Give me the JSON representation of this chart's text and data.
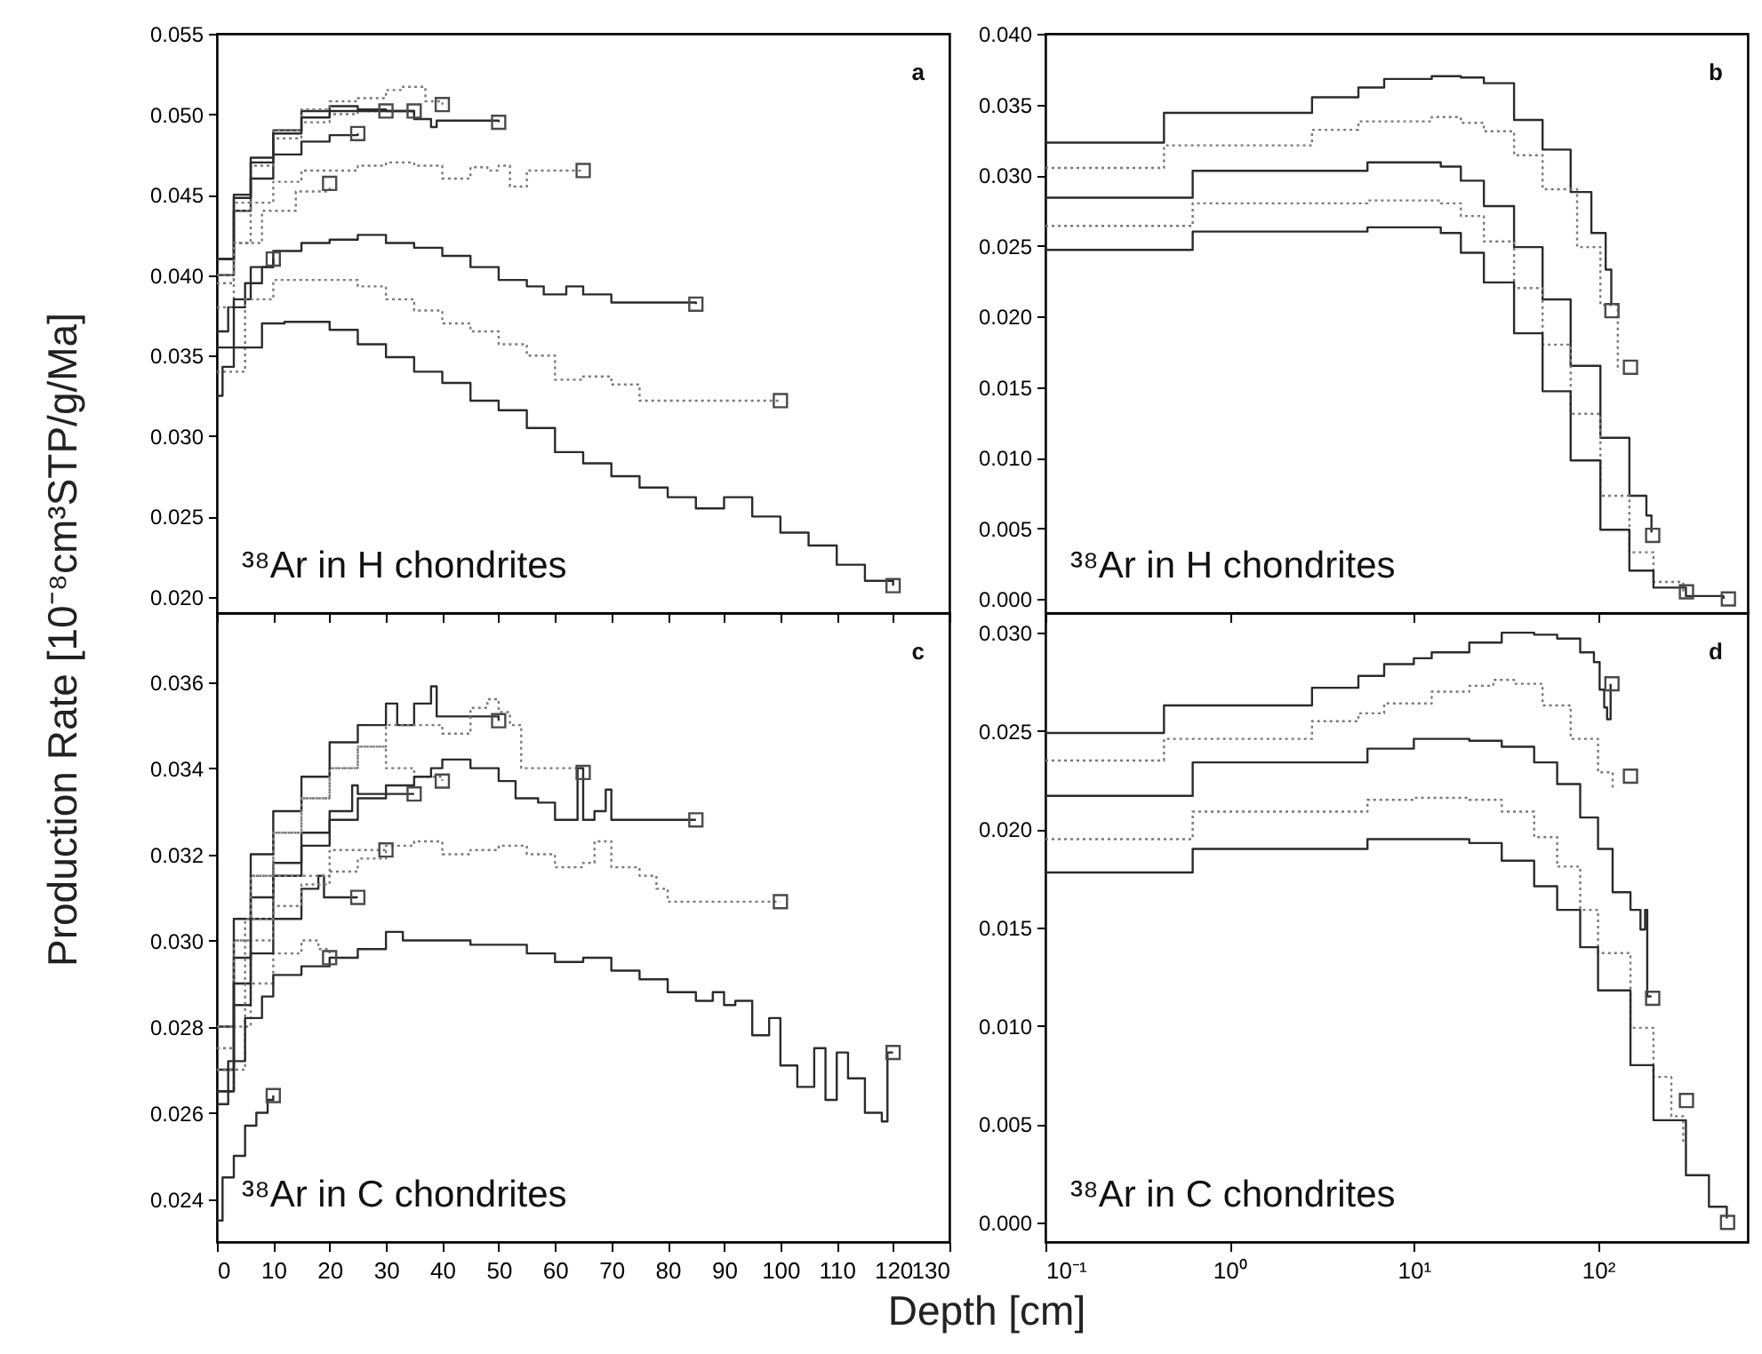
{
  "chart_data": [
    {
      "type": "step",
      "ylabel": "Production Rate [10⁻⁸cm³STP/g/Ma]",
      "annotations": [
        "a",
        "³⁸Ar in H chondrites"
      ],
      "xlim": [
        0,
        130
      ],
      "xticks": [
        0,
        10,
        20,
        30,
        40,
        50,
        60,
        70,
        80,
        90,
        100,
        110,
        120,
        130
      ],
      "ylim": [
        0.019,
        0.055
      ],
      "yticks": [
        {
          "value": 0.02,
          "label": "0.020"
        },
        {
          "value": 0.025,
          "label": "0.025"
        },
        {
          "value": 0.03,
          "label": "0.030"
        },
        {
          "value": 0.035,
          "label": "0.035"
        },
        {
          "value": 0.04,
          "label": "0.040"
        },
        {
          "value": 0.045,
          "label": "0.045"
        },
        {
          "value": 0.05,
          "label": "0.050"
        },
        {
          "value": 0.055,
          "label": "0.055"
        }
      ],
      "tick_labels": "y",
      "series": [
        {
          "color": "#2b2b2b",
          "line_style": "solid",
          "x": [
            0,
            2,
            5,
            8,
            10
          ],
          "values": [
            0.0365,
            0.038,
            0.0395,
            0.0405,
            0.041
          ]
        },
        {
          "color": "#7a7a7a",
          "line_style": "dotted",
          "x": [
            0,
            3,
            8,
            14,
            20
          ],
          "values": [
            0.0395,
            0.042,
            0.044,
            0.0452,
            0.0455
          ]
        },
        {
          "color": "#2b2b2b",
          "line_style": "solid",
          "x": [
            0,
            3,
            6,
            10,
            15,
            20,
            25
          ],
          "values": [
            0.04,
            0.044,
            0.046,
            0.0475,
            0.0483,
            0.0487,
            0.0488
          ]
        },
        {
          "color": "#7a7a7a",
          "line_style": "dotted",
          "x": [
            0,
            3,
            6,
            10,
            15,
            20,
            25,
            30
          ],
          "values": [
            0.041,
            0.0445,
            0.0468,
            0.0485,
            0.0495,
            0.05,
            0.0502,
            0.0502
          ]
        },
        {
          "color": "#2b2b2b",
          "line_style": "solid",
          "x": [
            0,
            3,
            6,
            10,
            15,
            20,
            25,
            30,
            35
          ],
          "values": [
            0.041,
            0.045,
            0.0473,
            0.049,
            0.0502,
            0.0505,
            0.0503,
            0.0502,
            0.05
          ]
        },
        {
          "color": "#7a7a7a",
          "line_style": "dotted",
          "x": [
            0,
            3,
            6,
            10,
            15,
            20,
            25,
            30,
            33,
            37,
            40
          ],
          "values": [
            0.04,
            0.044,
            0.047,
            0.049,
            0.0503,
            0.0508,
            0.051,
            0.0515,
            0.0517,
            0.0508,
            0.0506
          ]
        },
        {
          "color": "#2b2b2b",
          "line_style": "solid",
          "x": [
            0,
            3,
            6,
            10,
            15,
            20,
            25,
            30,
            35,
            38,
            39,
            50
          ],
          "values": [
            0.041,
            0.0448,
            0.047,
            0.0488,
            0.0498,
            0.0502,
            0.0502,
            0.0502,
            0.0497,
            0.0492,
            0.0496,
            0.0495
          ]
        },
        {
          "color": "#7a7a7a",
          "line_style": "dotted",
          "x": [
            0,
            3,
            6,
            10,
            15,
            25,
            30,
            35,
            40,
            45,
            48,
            50,
            52,
            55,
            65
          ],
          "values": [
            0.038,
            0.042,
            0.0445,
            0.0458,
            0.0465,
            0.0468,
            0.047,
            0.0468,
            0.046,
            0.0467,
            0.0465,
            0.0468,
            0.0455,
            0.0465,
            0.0465
          ]
        },
        {
          "color": "#2b2b2b",
          "line_style": "solid",
          "x": [
            0,
            3,
            6,
            10,
            15,
            20,
            25,
            30,
            35,
            40,
            45,
            50,
            55,
            58,
            62,
            65,
            70,
            85
          ],
          "values": [
            0.0355,
            0.0385,
            0.0405,
            0.0415,
            0.042,
            0.0422,
            0.0425,
            0.042,
            0.0417,
            0.0412,
            0.0405,
            0.0397,
            0.0393,
            0.0388,
            0.0393,
            0.0388,
            0.0383,
            0.0382
          ]
        },
        {
          "color": "#7a7a7a",
          "line_style": "dotted",
          "x": [
            0,
            5,
            10,
            20,
            25,
            30,
            35,
            40,
            45,
            50,
            55,
            60,
            65,
            70,
            75,
            100
          ],
          "values": [
            0.034,
            0.0385,
            0.0397,
            0.0397,
            0.0393,
            0.0385,
            0.0378,
            0.037,
            0.0365,
            0.0357,
            0.035,
            0.0335,
            0.0337,
            0.0332,
            0.0322,
            0.0322
          ]
        },
        {
          "color": "#2b2b2b",
          "line_style": "solid",
          "x": [
            0,
            1,
            3,
            8,
            12,
            20,
            25,
            30,
            35,
            40,
            45,
            50,
            55,
            60,
            65,
            70,
            75,
            80,
            85,
            90,
            92,
            95,
            100,
            105,
            110,
            115,
            120
          ],
          "values": [
            0.0325,
            0.0343,
            0.0355,
            0.037,
            0.0371,
            0.0366,
            0.0357,
            0.0349,
            0.034,
            0.0333,
            0.0322,
            0.0316,
            0.0305,
            0.029,
            0.0283,
            0.0275,
            0.0268,
            0.0262,
            0.0255,
            0.0262,
            0.0262,
            0.025,
            0.024,
            0.0232,
            0.022,
            0.021,
            0.0207
          ]
        },
        {
          "type": "scatter",
          "marker": "square",
          "color": "#4a4a4a",
          "x": [
            10,
            20,
            25,
            30,
            35,
            40,
            50,
            65,
            85,
            100,
            120
          ],
          "values": [
            0.041,
            0.0457,
            0.0488,
            0.0502,
            0.0502,
            0.0506,
            0.0495,
            0.0465,
            0.0382,
            0.0322,
            0.0207
          ]
        }
      ]
    },
    {
      "type": "step",
      "log": "x",
      "annotations": [
        "b",
        "³⁸Ar in H chondrites"
      ],
      "xlim": [
        0.1,
        650
      ],
      "xticks": [
        0.1,
        1,
        10,
        100
      ],
      "ylim": [
        -0.001,
        0.04
      ],
      "yticks": [
        {
          "value": 0,
          "label": "0.000"
        },
        {
          "value": 0.005,
          "label": "0.005"
        },
        {
          "value": 0.01,
          "label": "0.010"
        },
        {
          "value": 0.015,
          "label": "0.015"
        },
        {
          "value": 0.02,
          "label": "0.020"
        },
        {
          "value": 0.025,
          "label": "0.025"
        },
        {
          "value": 0.03,
          "label": "0.030"
        },
        {
          "value": 0.035,
          "label": "0.035"
        },
        {
          "value": 0.04,
          "label": "0.040"
        }
      ],
      "tick_labels": "y",
      "series": [
        {
          "color": "#2b2b2b",
          "line_style": "solid",
          "x": [
            0.1,
            0.44,
            2.8,
            5,
            6.9,
            12.5,
            18,
            24,
            35,
            50,
            71,
            92,
            110,
            118
          ],
          "values": [
            0.0323,
            0.0344,
            0.0355,
            0.0362,
            0.0368,
            0.037,
            0.0369,
            0.0365,
            0.0339,
            0.0318,
            0.0288,
            0.0259,
            0.0233,
            0.0208
          ]
        },
        {
          "color": "#7a7a7a",
          "line_style": "dotted",
          "x": [
            0.1,
            0.44,
            2.8,
            5,
            12.5,
            18,
            24,
            35,
            50,
            77,
            103,
            128
          ],
          "values": [
            0.0305,
            0.0321,
            0.0332,
            0.0338,
            0.0341,
            0.0337,
            0.0331,
            0.0314,
            0.029,
            0.0249,
            0.0208,
            0.0161
          ]
        },
        {
          "color": "#2b2b2b",
          "line_style": "solid",
          "x": [
            0.1,
            0.63,
            5.6,
            14,
            18,
            24,
            35,
            50,
            71,
            103,
            148,
            183,
            195
          ],
          "values": [
            0.0284,
            0.0303,
            0.0309,
            0.0306,
            0.0296,
            0.0278,
            0.0249,
            0.0212,
            0.0165,
            0.0114,
            0.0073,
            0.0059,
            0.0047
          ]
        },
        {
          "color": "#7a7a7a",
          "line_style": "dotted",
          "x": [
            0.1,
            0.63,
            5.6,
            14,
            18,
            24,
            35,
            50,
            71,
            103,
            148,
            200,
            290
          ],
          "values": [
            0.0264,
            0.028,
            0.0282,
            0.028,
            0.0271,
            0.0253,
            0.022,
            0.018,
            0.0131,
            0.0073,
            0.0033,
            0.0012,
            0.0003
          ]
        },
        {
          "color": "#2b2b2b",
          "line_style": "solid",
          "x": [
            0.1,
            0.63,
            5.6,
            14,
            18,
            24,
            35,
            50,
            71,
            103,
            148,
            200,
            300,
            480
          ],
          "values": [
            0.0247,
            0.026,
            0.0263,
            0.0259,
            0.0245,
            0.0224,
            0.0188,
            0.0147,
            0.0098,
            0.0049,
            0.002,
            0.0008,
            0.0002,
            0.0
          ]
        },
        {
          "type": "scatter",
          "marker": "square",
          "color": "#4a4a4a",
          "x": [
            119,
            150,
            198,
            302,
            510
          ],
          "values": [
            0.0204,
            0.0164,
            0.0045,
            0.0005,
            0.0
          ]
        }
      ]
    },
    {
      "type": "step",
      "xlabel": "Depth [cm]",
      "annotations": [
        "c",
        "³⁸Ar in C chondrites"
      ],
      "xlim": [
        0,
        130
      ],
      "xticks": [
        0,
        10,
        20,
        30,
        40,
        50,
        60,
        70,
        80,
        90,
        100,
        110,
        120,
        130
      ],
      "ylim": [
        0.023,
        0.0376
      ],
      "yticks": [
        {
          "value": 0.024,
          "label": "0.024"
        },
        {
          "value": 0.026,
          "label": "0.026"
        },
        {
          "value": 0.028,
          "label": "0.028"
        },
        {
          "value": 0.03,
          "label": "0.030"
        },
        {
          "value": 0.032,
          "label": "0.032"
        },
        {
          "value": 0.034,
          "label": "0.034"
        },
        {
          "value": 0.036,
          "label": "0.036"
        }
      ],
      "series": [
        {
          "color": "#2b2b2b",
          "line_style": "solid",
          "x": [
            0,
            1,
            3,
            5,
            7,
            9,
            10
          ],
          "values": [
            0.0235,
            0.0245,
            0.025,
            0.0257,
            0.026,
            0.0263,
            0.0264
          ]
        },
        {
          "color": "#7a7a7a",
          "line_style": "dotted",
          "x": [
            0,
            3,
            6,
            10,
            15,
            18,
            20
          ],
          "values": [
            0.0265,
            0.028,
            0.029,
            0.0297,
            0.03,
            0.0298,
            0.0297
          ]
        },
        {
          "color": "#2b2b2b",
          "line_style": "solid",
          "x": [
            0,
            3,
            6,
            10,
            15,
            18,
            19,
            25
          ],
          "values": [
            0.0265,
            0.0285,
            0.0297,
            0.0305,
            0.0312,
            0.0315,
            0.031,
            0.031
          ]
        },
        {
          "color": "#7a7a7a",
          "line_style": "dotted",
          "x": [
            0,
            3,
            6,
            10,
            15,
            20,
            25,
            30
          ],
          "values": [
            0.027,
            0.029,
            0.03,
            0.0308,
            0.0313,
            0.0316,
            0.0319,
            0.0321
          ]
        },
        {
          "color": "#2b2b2b",
          "line_style": "solid",
          "x": [
            0,
            3,
            6,
            10,
            15,
            20,
            24,
            25,
            35
          ],
          "values": [
            0.027,
            0.0296,
            0.031,
            0.0318,
            0.0325,
            0.033,
            0.0336,
            0.0334,
            0.0334
          ]
        },
        {
          "color": "#7a7a7a",
          "line_style": "dotted",
          "x": [
            0,
            3,
            6,
            10,
            15,
            20,
            25,
            30,
            35,
            40
          ],
          "values": [
            0.0275,
            0.03,
            0.0315,
            0.0325,
            0.0333,
            0.034,
            0.0345,
            0.034,
            0.0338,
            0.0337
          ]
        },
        {
          "color": "#2b2b2b",
          "line_style": "solid",
          "x": [
            0,
            3,
            6,
            10,
            15,
            20,
            25,
            30,
            32,
            35,
            38,
            39,
            50
          ],
          "values": [
            0.028,
            0.0305,
            0.032,
            0.033,
            0.0338,
            0.0346,
            0.035,
            0.0355,
            0.035,
            0.0355,
            0.0359,
            0.0352,
            0.0351
          ]
        },
        {
          "color": "#7a7a7a",
          "line_style": "dotted",
          "x": [
            0,
            3,
            6,
            10,
            15,
            20,
            25,
            30,
            40,
            45,
            48,
            50,
            52,
            54,
            65
          ],
          "values": [
            0.028,
            0.03,
            0.0315,
            0.0325,
            0.0333,
            0.034,
            0.0345,
            0.035,
            0.0348,
            0.0354,
            0.0356,
            0.0353,
            0.035,
            0.034,
            0.034
          ]
        },
        {
          "color": "#2b2b2b",
          "line_style": "solid",
          "x": [
            0,
            3,
            6,
            10,
            15,
            20,
            25,
            30,
            35,
            38,
            40,
            45,
            50,
            53,
            57,
            60,
            63,
            64,
            65,
            67,
            69,
            70,
            85
          ],
          "values": [
            0.0265,
            0.029,
            0.0305,
            0.0315,
            0.0322,
            0.0328,
            0.0333,
            0.0336,
            0.0338,
            0.034,
            0.0342,
            0.034,
            0.0337,
            0.0333,
            0.0332,
            0.0328,
            0.0328,
            0.034,
            0.0328,
            0.033,
            0.0335,
            0.0328,
            0.0328
          ]
        },
        {
          "color": "#7a7a7a",
          "line_style": "dotted",
          "x": [
            0,
            5,
            10,
            20,
            30,
            35,
            40,
            45,
            50,
            55,
            60,
            65,
            67,
            70,
            75,
            78,
            80,
            100
          ],
          "values": [
            0.027,
            0.0305,
            0.0315,
            0.0321,
            0.0322,
            0.0323,
            0.032,
            0.0321,
            0.0322,
            0.032,
            0.0317,
            0.0318,
            0.0323,
            0.0317,
            0.0315,
            0.0312,
            0.0309,
            0.0309
          ]
        },
        {
          "color": "#2b2b2b",
          "line_style": "solid",
          "x": [
            0,
            2,
            5,
            8,
            10,
            15,
            20,
            25,
            30,
            33,
            40,
            45,
            50,
            55,
            60,
            65,
            70,
            75,
            80,
            85,
            88,
            90,
            92,
            95,
            98,
            100,
            103,
            106,
            108,
            110,
            112,
            115,
            118,
            119,
            120
          ],
          "values": [
            0.0262,
            0.0272,
            0.0282,
            0.0287,
            0.0292,
            0.0294,
            0.0296,
            0.0298,
            0.0302,
            0.03,
            0.03,
            0.0299,
            0.0299,
            0.0297,
            0.0295,
            0.0296,
            0.0293,
            0.0291,
            0.0288,
            0.0286,
            0.0288,
            0.0285,
            0.0286,
            0.0278,
            0.0282,
            0.0271,
            0.0266,
            0.0275,
            0.0263,
            0.0274,
            0.0268,
            0.026,
            0.0258,
            0.0274,
            0.0274
          ]
        },
        {
          "type": "scatter",
          "marker": "square",
          "color": "#4a4a4a",
          "x": [
            10,
            20,
            25,
            30,
            35,
            40,
            50,
            65,
            85,
            100,
            120
          ],
          "values": [
            0.0264,
            0.0296,
            0.031,
            0.0321,
            0.0334,
            0.0337,
            0.0351,
            0.0339,
            0.0328,
            0.0309,
            0.0274
          ]
        }
      ]
    },
    {
      "type": "step",
      "log": "x",
      "annotations": [
        "d",
        "³⁸Ar in C chondrites"
      ],
      "xlim": [
        0.1,
        650
      ],
      "xticks": [
        {
          "value": 0.1,
          "label": "10⁻¹"
        },
        {
          "value": 1,
          "label": "10⁰"
        },
        {
          "value": 10,
          "label": "10¹"
        },
        {
          "value": 100,
          "label": "10²"
        }
      ],
      "ylim": [
        -0.001,
        0.031
      ],
      "yticks": [
        {
          "value": 0,
          "label": "0.000"
        },
        {
          "value": 0.005,
          "label": "0.005"
        },
        {
          "value": 0.01,
          "label": "0.010"
        },
        {
          "value": 0.015,
          "label": "0.015"
        },
        {
          "value": 0.02,
          "label": "0.020"
        },
        {
          "value": 0.025,
          "label": "0.025"
        },
        {
          "value": 0.03,
          "label": "0.030"
        }
      ],
      "series": [
        {
          "color": "#2b2b2b",
          "line_style": "solid",
          "x": [
            0.1,
            0.44,
            2.8,
            5,
            6.9,
            10,
            12.5,
            20,
            30,
            45,
            60,
            80,
            95,
            102,
            108,
            112,
            117
          ],
          "values": [
            0.0249,
            0.0263,
            0.0272,
            0.0278,
            0.0284,
            0.0287,
            0.029,
            0.0295,
            0.03,
            0.0299,
            0.0297,
            0.029,
            0.0285,
            0.0271,
            0.0262,
            0.0256,
            0.0274
          ]
        },
        {
          "color": "#7a7a7a",
          "line_style": "dotted",
          "x": [
            0.1,
            0.44,
            2.8,
            5,
            6.9,
            12.5,
            20,
            27,
            35,
            50,
            71,
            100,
            120
          ],
          "values": [
            0.0235,
            0.0246,
            0.0255,
            0.0259,
            0.0264,
            0.027,
            0.0273,
            0.0276,
            0.0274,
            0.0263,
            0.0246,
            0.0229,
            0.0221
          ]
        },
        {
          "color": "#2b2b2b",
          "line_style": "solid",
          "x": [
            0.1,
            0.63,
            5.6,
            10,
            20,
            30,
            45,
            60,
            80,
            100,
            120,
            150,
            170,
            180,
            185,
            195
          ],
          "values": [
            0.0217,
            0.0234,
            0.0241,
            0.0246,
            0.0245,
            0.0242,
            0.0234,
            0.0223,
            0.0206,
            0.019,
            0.0168,
            0.0159,
            0.0149,
            0.0159,
            0.0115,
            0.0115
          ]
        },
        {
          "color": "#7a7a7a",
          "line_style": "dotted",
          "x": [
            0.1,
            0.63,
            5.6,
            10,
            20,
            30,
            45,
            60,
            80,
            100,
            150,
            200,
            250,
            290
          ],
          "values": [
            0.0195,
            0.0209,
            0.0215,
            0.0216,
            0.0215,
            0.0209,
            0.0196,
            0.0181,
            0.0159,
            0.0137,
            0.0099,
            0.0074,
            0.0054,
            0.0041
          ]
        },
        {
          "color": "#2b2b2b",
          "line_style": "solid",
          "x": [
            0.1,
            0.63,
            5.6,
            10,
            20,
            30,
            45,
            60,
            80,
            100,
            150,
            200,
            300,
            400,
            500
          ],
          "values": [
            0.0178,
            0.019,
            0.0195,
            0.0195,
            0.0193,
            0.0184,
            0.0171,
            0.0159,
            0.014,
            0.0118,
            0.008,
            0.0052,
            0.0024,
            0.0008,
            0.0002
          ]
        },
        {
          "type": "scatter",
          "marker": "square",
          "color": "#4a4a4a",
          "x": [
            119,
            150,
            198,
            302,
            505
          ],
          "values": [
            0.0274,
            0.0227,
            0.0114,
            0.0062,
            0.0
          ]
        }
      ]
    }
  ]
}
